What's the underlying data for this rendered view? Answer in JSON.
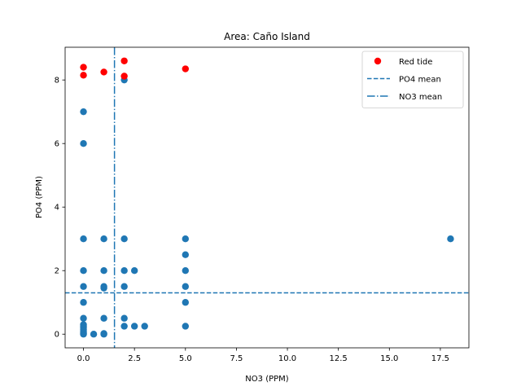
{
  "chart_data": {
    "type": "scatter",
    "title": "Area: Caño Island",
    "xlabel": "NO3 (PPM)",
    "ylabel": "PO4 (PPM)",
    "xlim": [
      -0.9,
      18.9
    ],
    "ylim": [
      -0.43,
      9.03
    ],
    "xticks": [
      0.0,
      2.5,
      5.0,
      7.5,
      10.0,
      12.5,
      15.0,
      17.5
    ],
    "xtick_labels": [
      "0.0",
      "2.5",
      "5.0",
      "7.5",
      "10.0",
      "12.5",
      "15.0",
      "17.5"
    ],
    "yticks": [
      0,
      2,
      4,
      6,
      8
    ],
    "ytick_labels": [
      "0",
      "2",
      "4",
      "6",
      "8"
    ],
    "grid": false,
    "legend_position": "top-right",
    "series": [
      {
        "kind": "points",
        "color": "#1f77b4",
        "points": [
          [
            0,
            0
          ],
          [
            0,
            0.02
          ],
          [
            0,
            0.05
          ],
          [
            0,
            0.1
          ],
          [
            0,
            0.15
          ],
          [
            0,
            0.2
          ],
          [
            0,
            0.25
          ],
          [
            0,
            0.3
          ],
          [
            0,
            0.5
          ],
          [
            0,
            1
          ],
          [
            0,
            1.5
          ],
          [
            0,
            2
          ],
          [
            0,
            3
          ],
          [
            0,
            6
          ],
          [
            0,
            7
          ],
          [
            0.5,
            0
          ],
          [
            1,
            0
          ],
          [
            1,
            0.02
          ],
          [
            1,
            0.5
          ],
          [
            1,
            1.45
          ],
          [
            1,
            1.5
          ],
          [
            1,
            2
          ],
          [
            1,
            3
          ],
          [
            2,
            0.25
          ],
          [
            2,
            0.5
          ],
          [
            2,
            1.5
          ],
          [
            2,
            2
          ],
          [
            2,
            3
          ],
          [
            2,
            8
          ],
          [
            2.5,
            0.25
          ],
          [
            2.5,
            2
          ],
          [
            3,
            0.25
          ],
          [
            5,
            0.25
          ],
          [
            5,
            1
          ],
          [
            5,
            1.5
          ],
          [
            5,
            2
          ],
          [
            5,
            2.5
          ],
          [
            5,
            3
          ],
          [
            18,
            3
          ]
        ]
      },
      {
        "name": "Red tide",
        "kind": "points",
        "color": "#ff0000",
        "points": [
          [
            0,
            8.4
          ],
          [
            0,
            8.15
          ],
          [
            1,
            8.25
          ],
          [
            2,
            8.6
          ],
          [
            2,
            8.12
          ],
          [
            5,
            8.35
          ]
        ]
      },
      {
        "name": "PO4 mean",
        "kind": "hline",
        "color": "#1f77b4",
        "style": "dashed",
        "value": 1.3
      },
      {
        "name": "NO3 mean",
        "kind": "vline",
        "color": "#1f77b4",
        "style": "dashdot",
        "value": 1.52
      }
    ]
  }
}
